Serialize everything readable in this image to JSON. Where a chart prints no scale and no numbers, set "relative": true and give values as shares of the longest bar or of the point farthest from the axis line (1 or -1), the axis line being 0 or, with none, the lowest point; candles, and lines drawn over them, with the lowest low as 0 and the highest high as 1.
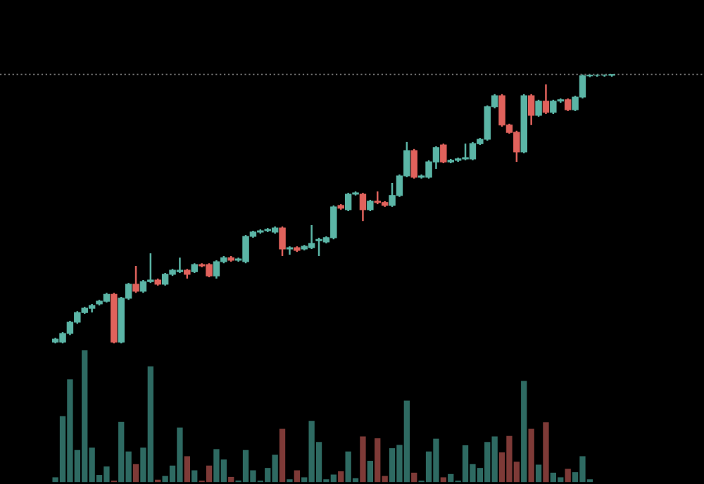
{
  "chart_data": [
    {
      "type": "candlestick",
      "relative": true,
      "categories": [
        null,
        null,
        null,
        null,
        null,
        null,
        null,
        null,
        null,
        null,
        null,
        null,
        null,
        null,
        null,
        null,
        null,
        null,
        null,
        null,
        null,
        null,
        null,
        null,
        null,
        null,
        null,
        null,
        null,
        null,
        null,
        null,
        null,
        null,
        null,
        null,
        null,
        null,
        null,
        null,
        null,
        null,
        null,
        null,
        null,
        null,
        null,
        null,
        null,
        null,
        null,
        null,
        null,
        null,
        null,
        null,
        null,
        null,
        null,
        null,
        null,
        null,
        null,
        null,
        null,
        null,
        null,
        null,
        null,
        null,
        null,
        null,
        null,
        null,
        null,
        null,
        null
      ],
      "ohlc": [
        [
          0.005,
          0.021,
          0,
          0.016
        ],
        [
          0.005,
          0.042,
          0,
          0.037
        ],
        [
          0.037,
          0.084,
          0.031,
          0.079
        ],
        [
          0.079,
          0.12,
          0.073,
          0.115
        ],
        [
          0.115,
          0.136,
          0.11,
          0.131
        ],
        [
          0.131,
          0.147,
          0.115,
          0.141
        ],
        [
          0.147,
          0.162,
          0.141,
          0.157
        ],
        [
          0.157,
          0.188,
          0.152,
          0.183
        ],
        [
          0.183,
          0.188,
          0,
          0.005
        ],
        [
          0.005,
          0.173,
          0,
          0.168
        ],
        [
          0.168,
          0.225,
          0.162,
          0.22
        ],
        [
          0.22,
          0.288,
          0.188,
          0.194
        ],
        [
          0.194,
          0.236,
          0.188,
          0.23
        ],
        [
          0.23,
          0.335,
          0.225,
          0.236
        ],
        [
          0.236,
          0.241,
          0.215,
          0.22
        ],
        [
          0.22,
          0.262,
          0.215,
          0.257
        ],
        [
          0.257,
          0.277,
          0.251,
          0.272
        ],
        [
          0.267,
          0.319,
          0.262,
          0.272
        ],
        [
          0.272,
          0.277,
          0.241,
          0.257
        ],
        [
          0.267,
          0.298,
          0.262,
          0.293
        ],
        [
          0.293,
          0.298,
          0.283,
          0.288
        ],
        [
          0.293,
          0.298,
          0.246,
          0.251
        ],
        [
          0.251,
          0.309,
          0.241,
          0.304
        ],
        [
          0.304,
          0.325,
          0.298,
          0.319
        ],
        [
          0.319,
          0.325,
          0.304,
          0.309
        ],
        [
          0.309,
          0.319,
          0.304,
          0.314
        ],
        [
          0.304,
          0.403,
          0.298,
          0.398
        ],
        [
          0.398,
          0.419,
          0.393,
          0.414
        ],
        [
          0.414,
          0.424,
          0.408,
          0.419
        ],
        [
          0.419,
          0.429,
          0.414,
          0.424
        ],
        [
          0.414,
          0.435,
          0.408,
          0.429
        ],
        [
          0.429,
          0.435,
          0.325,
          0.351
        ],
        [
          0.351,
          0.361,
          0.33,
          0.356
        ],
        [
          0.356,
          0.361,
          0.34,
          0.346
        ],
        [
          0.351,
          0.366,
          0.346,
          0.361
        ],
        [
          0.356,
          0.44,
          0.351,
          0.372
        ],
        [
          0.382,
          0.393,
          0.325,
          0.387
        ],
        [
          0.377,
          0.398,
          0.372,
          0.393
        ],
        [
          0.393,
          0.513,
          0.387,
          0.508
        ],
        [
          0.513,
          0.518,
          0.497,
          0.503
        ],
        [
          0.497,
          0.56,
          0.492,
          0.555
        ],
        [
          0.555,
          0.565,
          0.55,
          0.56
        ],
        [
          0.555,
          0.56,
          0.455,
          0.497
        ],
        [
          0.497,
          0.534,
          0.492,
          0.529
        ],
        [
          0.529,
          0.565,
          0.518,
          0.524
        ],
        [
          0.524,
          0.529,
          0.508,
          0.513
        ],
        [
          0.513,
          0.597,
          0.508,
          0.55
        ],
        [
          0.55,
          0.628,
          0.545,
          0.623
        ],
        [
          0.623,
          0.749,
          0.618,
          0.717
        ],
        [
          0.717,
          0.723,
          0.613,
          0.618
        ],
        [
          0.618,
          0.628,
          0.613,
          0.623
        ],
        [
          0.618,
          0.681,
          0.613,
          0.675
        ],
        [
          0.675,
          0.733,
          0.649,
          0.728
        ],
        [
          0.738,
          0.743,
          0.67,
          0.675
        ],
        [
          0.675,
          0.686,
          0.67,
          0.681
        ],
        [
          0.681,
          0.691,
          0.675,
          0.686
        ],
        [
          0.686,
          0.743,
          0.681,
          0.691
        ],
        [
          0.686,
          0.749,
          0.681,
          0.743
        ],
        [
          0.743,
          0.764,
          0.738,
          0.759
        ],
        [
          0.759,
          0.885,
          0.754,
          0.88
        ],
        [
          0.88,
          0.927,
          0.874,
          0.921
        ],
        [
          0.921,
          0.927,
          0.806,
          0.812
        ],
        [
          0.812,
          0.817,
          0.78,
          0.785
        ],
        [
          0.785,
          0.791,
          0.675,
          0.712
        ],
        [
          0.712,
          0.927,
          0.707,
          0.921
        ],
        [
          0.921,
          0.927,
          0.812,
          0.848
        ],
        [
          0.848,
          0.906,
          0.843,
          0.901
        ],
        [
          0.901,
          0.963,
          0.853,
          0.859
        ],
        [
          0.859,
          0.906,
          0.853,
          0.901
        ],
        [
          0.901,
          0.911,
          0.895,
          0.906
        ],
        [
          0.906,
          0.911,
          0.864,
          0.869
        ],
        [
          0.869,
          0.921,
          0.864,
          0.916
        ],
        [
          0.916,
          1.0,
          0.911,
          0.995
        ],
        [
          0.995,
          1.0,
          0.99,
          0.997
        ],
        [
          0.997,
          1.0,
          0.992,
          0.997
        ],
        [
          0.997,
          1.0,
          0.992,
          0.997
        ],
        [
          0.997,
          1.0,
          0.992,
          1.0
        ]
      ],
      "colors": [
        "#5bb5a6",
        "#5bb5a6",
        "#5bb5a6",
        "#5bb5a6",
        "#5bb5a6",
        "#5bb5a6",
        "#5bb5a6",
        "#5bb5a6",
        "#e0625c",
        "#5bb5a6",
        "#5bb5a6",
        "#e0625c",
        "#5bb5a6",
        "#5bb5a6",
        "#e0625c",
        "#5bb5a6",
        "#5bb5a6",
        "#5bb5a6",
        "#e0625c",
        "#5bb5a6",
        "#e0625c",
        "#e0625c",
        "#5bb5a6",
        "#5bb5a6",
        "#e0625c",
        "#5bb5a6",
        "#5bb5a6",
        "#5bb5a6",
        "#5bb5a6",
        "#5bb5a6",
        "#5bb5a6",
        "#e0625c",
        "#5bb5a6",
        "#e0625c",
        "#5bb5a6",
        "#5bb5a6",
        "#5bb5a6",
        "#5bb5a6",
        "#5bb5a6",
        "#e0625c",
        "#5bb5a6",
        "#5bb5a6",
        "#e0625c",
        "#5bb5a6",
        "#e0625c",
        "#e0625c",
        "#5bb5a6",
        "#5bb5a6",
        "#5bb5a6",
        "#e0625c",
        "#5bb5a6",
        "#5bb5a6",
        "#5bb5a6",
        "#e0625c",
        "#5bb5a6",
        "#5bb5a6",
        "#5bb5a6",
        "#5bb5a6",
        "#5bb5a6",
        "#5bb5a6",
        "#5bb5a6",
        "#e0625c",
        "#e0625c",
        "#e0625c",
        "#5bb5a6",
        "#e0625c",
        "#5bb5a6",
        "#e0625c",
        "#5bb5a6",
        "#5bb5a6",
        "#e0625c",
        "#5bb5a6",
        "#5bb5a6",
        "#5bb5a6",
        "#5bb5a6",
        "#5bb5a6",
        "#5bb5a6"
      ],
      "ref_lines": [
        {
          "axis": "y",
          "value": 1.0,
          "color": "#6b6b6b",
          "line_style": "dotted"
        }
      ]
    },
    {
      "type": "bar",
      "relative": true,
      "categories": [
        null,
        null,
        null,
        null,
        null,
        null,
        null,
        null,
        null,
        null,
        null,
        null,
        null,
        null,
        null,
        null,
        null,
        null,
        null,
        null,
        null,
        null,
        null,
        null,
        null,
        null,
        null,
        null,
        null,
        null,
        null,
        null,
        null,
        null,
        null,
        null,
        null,
        null,
        null,
        null,
        null,
        null,
        null,
        null,
        null,
        null,
        null,
        null,
        null,
        null,
        null,
        null,
        null,
        null,
        null,
        null,
        null,
        null,
        null,
        null,
        null,
        null,
        null,
        null,
        null,
        null,
        null,
        null,
        null,
        null,
        null,
        null,
        null,
        null,
        null,
        null,
        null
      ],
      "values": [
        0.036,
        0.5,
        0.779,
        0.243,
        1.0,
        0.261,
        0.054,
        0.118,
        0.01,
        0.457,
        0.232,
        0.136,
        0.261,
        0.879,
        0.018,
        0.046,
        0.125,
        0.414,
        0.196,
        0.089,
        0.01,
        0.125,
        0.25,
        0.171,
        0.039,
        0.011,
        0.243,
        0.089,
        0.01,
        0.107,
        0.207,
        0.404,
        0.021,
        0.089,
        0.036,
        0.464,
        0.304,
        0.021,
        0.057,
        0.082,
        0.232,
        0.029,
        0.346,
        0.161,
        0.332,
        0.046,
        0.257,
        0.282,
        0.618,
        0.071,
        0.01,
        0.232,
        0.329,
        0.036,
        0.061,
        0.01,
        0.279,
        0.136,
        0.107,
        0.304,
        0.346,
        0.225,
        0.35,
        0.154,
        0.768,
        0.404,
        0.132,
        0.454,
        0.071,
        0.036,
        0.1,
        0.075,
        0.196,
        0.021,
        0,
        0,
        0
      ],
      "colors": [
        "#2e6a62",
        "#2e6a62",
        "#2e6a62",
        "#2e6a62",
        "#2e6a62",
        "#2e6a62",
        "#2e6a62",
        "#2e6a62",
        "#7e3a37",
        "#2e6a62",
        "#2e6a62",
        "#7e3a37",
        "#2e6a62",
        "#2e6a62",
        "#7e3a37",
        "#2e6a62",
        "#2e6a62",
        "#2e6a62",
        "#7e3a37",
        "#2e6a62",
        "#7e3a37",
        "#7e3a37",
        "#2e6a62",
        "#2e6a62",
        "#7e3a37",
        "#2e6a62",
        "#2e6a62",
        "#2e6a62",
        "#2e6a62",
        "#2e6a62",
        "#2e6a62",
        "#7e3a37",
        "#2e6a62",
        "#7e3a37",
        "#2e6a62",
        "#2e6a62",
        "#2e6a62",
        "#2e6a62",
        "#2e6a62",
        "#7e3a37",
        "#2e6a62",
        "#2e6a62",
        "#7e3a37",
        "#2e6a62",
        "#7e3a37",
        "#7e3a37",
        "#2e6a62",
        "#2e6a62",
        "#2e6a62",
        "#7e3a37",
        "#2e6a62",
        "#2e6a62",
        "#2e6a62",
        "#7e3a37",
        "#2e6a62",
        "#2e6a62",
        "#2e6a62",
        "#2e6a62",
        "#2e6a62",
        "#2e6a62",
        "#2e6a62",
        "#7e3a37",
        "#7e3a37",
        "#7e3a37",
        "#2e6a62",
        "#7e3a37",
        "#2e6a62",
        "#7e3a37",
        "#2e6a62",
        "#2e6a62",
        "#7e3a37",
        "#2e6a62",
        "#2e6a62",
        "#2e6a62",
        "#2e6a62",
        "#2e6a62",
        "#2e6a62"
      ]
    }
  ]
}
